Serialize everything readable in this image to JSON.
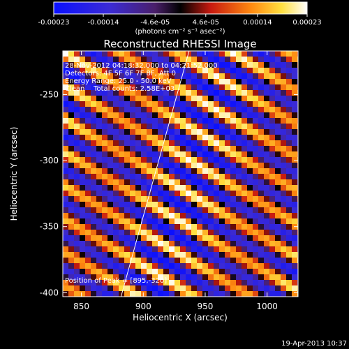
{
  "colorbar": {
    "tick_labels": [
      "-0.00023",
      "-0.00014",
      "-4.6e-05",
      "4.6e-05",
      "0.00014",
      "0.00023"
    ],
    "tick_values": [
      -0.00023,
      -0.00014,
      -4.6e-05,
      4.6e-05,
      0.00014,
      0.00023
    ],
    "range": [
      -0.00023,
      0.00023
    ],
    "units_text": "(photons cm⁻² s⁻¹ asec⁻²)"
  },
  "chart_data": {
    "type": "heatmap",
    "title": "Reconstructed RHESSI Image",
    "xlabel": "Heliocentric X (arcsec)",
    "ylabel": "Heliocentric Y (arcsec)",
    "xlim": [
      835,
      1025
    ],
    "ylim": [
      -403,
      -217
    ],
    "x_ticks": [
      850,
      900,
      950,
      1000
    ],
    "y_ticks": [
      -250,
      -300,
      -350,
      -400
    ],
    "x_tick_labels": [
      "850",
      "900",
      "950",
      "1000"
    ],
    "y_tick_labels": [
      "-250",
      "-300",
      "-350",
      "-400"
    ],
    "limb_line": [
      [
        882,
        -403
      ],
      [
        937,
        -217
      ]
    ],
    "peak_position": [
      895,
      -320
    ],
    "pattern": "diagonal fringe stripes"
  },
  "annotations": {
    "time_range": "28-Nov-2012 04:18:32.000 to 04:21:52.000",
    "detectors": "Detectors: 4F 5F 6F 7F 8F, Att 0",
    "energy_range": "Energy Range: 25.0 - 50.0 keV",
    "clean": "Clean    Total counts: 2.58E+03",
    "peak": "Position of Peak = [895,-320]"
  },
  "footer": {
    "date": "19-Apr-2013 10:37"
  },
  "colors": {
    "background": "#000000",
    "text": "#ffffff",
    "limb_line": "#ffffff"
  }
}
